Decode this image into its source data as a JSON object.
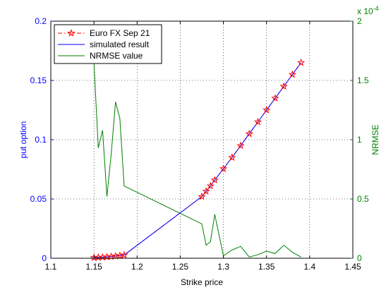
{
  "chart_data": {
    "type": "line",
    "title": "",
    "xlabel": "Strike price",
    "ylabel_left": "put option",
    "ylabel_right": "NRMSE",
    "right_axis_exponent": "x 10",
    "right_axis_exponent_power": "-4",
    "xlim": [
      1.1,
      1.45
    ],
    "ylim_left": [
      0,
      0.2
    ],
    "ylim_right": [
      0,
      2
    ],
    "xticks": [
      1.1,
      1.15,
      1.2,
      1.25,
      1.3,
      1.35,
      1.4,
      1.45
    ],
    "xtick_labels": [
      "1.1",
      "1.15",
      "1.2",
      "1.25",
      "1.3",
      "1.35",
      "1.4",
      "1.45"
    ],
    "yticks_left": [
      0,
      0.05,
      0.1,
      0.15,
      0.2
    ],
    "ytick_labels_left": [
      "0",
      "0.05",
      "0.1",
      "0.15",
      "0.2"
    ],
    "yticks_right": [
      0,
      0.5,
      1,
      1.5,
      2
    ],
    "ytick_labels_right": [
      "0",
      "0.5",
      "1",
      "1.5",
      "2"
    ],
    "grid": true,
    "legend_position": "top-left",
    "colors": {
      "market": "#ff0000",
      "simulated": "#0000ff",
      "nrmse": "#008000",
      "left_axis": "#0000ff",
      "right_axis": "#008000"
    },
    "series": [
      {
        "name": "Euro FX Sep 21",
        "axis": "left",
        "style": "dash-dot-star",
        "x": [
          1.15,
          1.155,
          1.16,
          1.165,
          1.17,
          1.175,
          1.18,
          1.185,
          1.275,
          1.28,
          1.285,
          1.29,
          1.3,
          1.31,
          1.32,
          1.33,
          1.34,
          1.35,
          1.36,
          1.37,
          1.38,
          1.39
        ],
        "values": [
          0.0005,
          0.0007,
          0.0009,
          0.0011,
          0.0014,
          0.0018,
          0.0022,
          0.0027,
          0.052,
          0.0565,
          0.061,
          0.066,
          0.0755,
          0.085,
          0.095,
          0.105,
          0.115,
          0.125,
          0.135,
          0.145,
          0.155,
          0.165
        ]
      },
      {
        "name": "simulated result",
        "axis": "left",
        "style": "solid",
        "x": [
          1.15,
          1.155,
          1.16,
          1.165,
          1.17,
          1.175,
          1.18,
          1.185,
          1.275,
          1.28,
          1.285,
          1.29,
          1.3,
          1.31,
          1.32,
          1.33,
          1.34,
          1.35,
          1.36,
          1.37,
          1.38,
          1.39
        ],
        "values": [
          0.0005,
          0.0007,
          0.0009,
          0.0011,
          0.0014,
          0.0018,
          0.0022,
          0.0027,
          0.052,
          0.0565,
          0.061,
          0.066,
          0.0755,
          0.085,
          0.095,
          0.105,
          0.115,
          0.125,
          0.135,
          0.145,
          0.155,
          0.165
        ]
      },
      {
        "name": "NRMSE value",
        "axis": "right",
        "style": "solid",
        "x": [
          1.15,
          1.155,
          1.16,
          1.165,
          1.17,
          1.175,
          1.18,
          1.185,
          1.275,
          1.28,
          1.285,
          1.29,
          1.3,
          1.31,
          1.32,
          1.33,
          1.34,
          1.35,
          1.36,
          1.37,
          1.38,
          1.39
        ],
        "values": [
          1.65,
          0.93,
          1.08,
          0.52,
          0.88,
          1.32,
          1.18,
          0.61,
          0.29,
          0.11,
          0.14,
          0.37,
          0.02,
          0.07,
          0.1,
          0.01,
          0.03,
          0.06,
          0.04,
          0.11,
          0.05,
          0.01
        ]
      }
    ]
  }
}
